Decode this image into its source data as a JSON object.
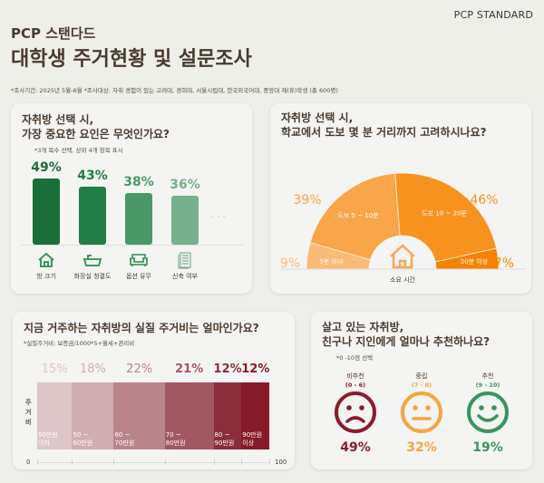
{
  "header": {
    "brand": "PCP STANDARD",
    "subtitle": "PCP 스탠다드",
    "title": "대학생 주거현황 및 설문조사",
    "note": "*조사기간: 2025년 5월-6월   *조사대상: 자취 경험이 있는 고려대, 경희대, 서울시립대, 한국외국어대, 중앙대 재(휴)학생 (총 600명)"
  },
  "chart_data": [
    {
      "type": "bar",
      "title_line1": "자취방 선택 시,",
      "title_line2": "가장 중요한 요인은 무엇인가요?",
      "note": "*3개 복수 선택, 상위 4개 항목 표시",
      "categories": [
        "방 크기",
        "화장실 청결도",
        "옵션 유무",
        "신축 여부"
      ],
      "values": [
        49,
        43,
        38,
        36
      ],
      "labels": [
        "49%",
        "43%",
        "38%",
        "36%"
      ],
      "icons": [
        "house-icon",
        "bathtub-icon",
        "sofa-icon",
        "building-icon"
      ],
      "colors": [
        "#1a6e3a",
        "#237d46",
        "#4a9868",
        "#76b08c"
      ],
      "more": "···"
    },
    {
      "type": "pie",
      "subtype": "half-donut",
      "title_line1": "자취방 선택 시,",
      "title_line2": "학교에서 도보 몇 분 거리까지 고려하시나요?",
      "categories": [
        "5분 이내",
        "도보 5 ~ 10분",
        "도보 10 ~ 20분",
        "20분 이상"
      ],
      "values": [
        9,
        39,
        46,
        7
      ],
      "labels": [
        "9%",
        "39%",
        "46%",
        "7%"
      ],
      "colors": [
        "#f9bb78",
        "#f9a549",
        "#f7921f",
        "#f58300"
      ],
      "center_label": "소요 시간"
    },
    {
      "type": "bar",
      "subtype": "stacked-100",
      "title": "지금 거주하는 자취방의 실질 주거비는 얼마인가요?",
      "note": "*실질주거비: 보증금/1000*5+월세+관리비",
      "ylabel": "주거비",
      "categories": [
        [
          "50만원",
          "이하"
        ],
        [
          "50 ~",
          "60만원"
        ],
        [
          "60 ~",
          "70만원"
        ],
        [
          "70 ~",
          "80만원"
        ],
        [
          "80 ~",
          "90만원"
        ],
        [
          "90만원",
          "이상"
        ]
      ],
      "values": [
        15,
        18,
        22,
        21,
        12,
        12
      ],
      "labels": [
        "15%",
        "18%",
        "22%",
        "21%",
        "12%",
        "12%"
      ],
      "colors": [
        "#ddc5c8",
        "#d0aeb2",
        "#b9858b",
        "#a25862",
        "#8a2e3c",
        "#861b29"
      ],
      "xlim": [
        0,
        100
      ],
      "x_ticks": [
        "0",
        "100"
      ]
    },
    {
      "type": "pie",
      "subtype": "icon-stat",
      "title_line1": "살고 있는 자취방,",
      "title_line2": "친구나 지인에게 얼마나 추천하나요?",
      "note": "*0 -10점 선택",
      "categories": [
        "비추천",
        "중립",
        "추천"
      ],
      "ranges": [
        "(0 - 6)",
        "(7 - 8)",
        "(9 - 10)"
      ],
      "values": [
        49,
        32,
        19
      ],
      "labels": [
        "49%",
        "32%",
        "19%"
      ],
      "icons": [
        "sad-face-icon",
        "neutral-face-icon",
        "smile-face-icon"
      ],
      "colors": [
        "#8a1c2b",
        "#f7a440",
        "#3a9460"
      ]
    }
  ]
}
